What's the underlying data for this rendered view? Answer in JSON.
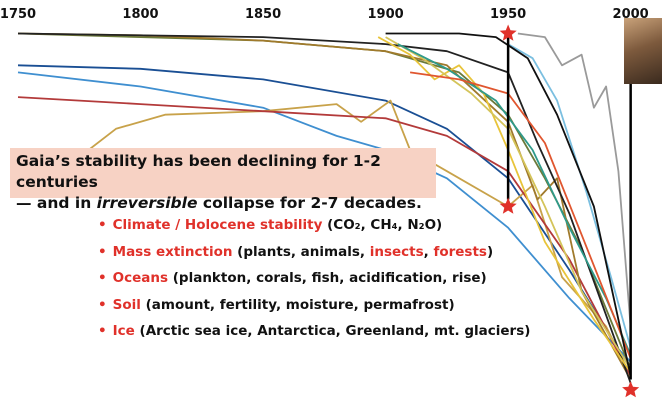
{
  "chart_data": {
    "type": "line",
    "title": "",
    "xlabel": "",
    "ylabel": "",
    "xlim": [
      1750,
      2003
    ],
    "ylim": [
      0,
      100
    ],
    "x_ticks": [
      1750,
      1800,
      1850,
      1900,
      1950,
      2000
    ],
    "grid": "none",
    "series": [
      {
        "color": "#3f8fd0",
        "points": [
          [
            1750,
            88
          ],
          [
            1800,
            84
          ],
          [
            1850,
            78
          ],
          [
            1880,
            70
          ],
          [
            1900,
            66
          ],
          [
            1925,
            58
          ],
          [
            1950,
            44
          ],
          [
            1975,
            24
          ],
          [
            2000,
            6
          ]
        ]
      },
      {
        "color": "#1a4f94",
        "points": [
          [
            1750,
            90
          ],
          [
            1800,
            89
          ],
          [
            1850,
            86
          ],
          [
            1900,
            80
          ],
          [
            1925,
            72
          ],
          [
            1950,
            58
          ],
          [
            1975,
            32
          ],
          [
            2000,
            4
          ]
        ]
      },
      {
        "color": "#6b7a3a",
        "points": [
          [
            1750,
            99
          ],
          [
            1800,
            98
          ],
          [
            1850,
            97
          ],
          [
            1900,
            94
          ],
          [
            1930,
            88
          ],
          [
            1950,
            76
          ],
          [
            1965,
            58
          ],
          [
            1980,
            38
          ],
          [
            2000,
            4
          ]
        ]
      },
      {
        "color": "#c8a24a",
        "points": [
          [
            1750,
            64
          ],
          [
            1762,
            58
          ],
          [
            1775,
            64
          ],
          [
            1790,
            72
          ],
          [
            1810,
            76
          ],
          [
            1850,
            77
          ],
          [
            1880,
            79
          ],
          [
            1890,
            74
          ],
          [
            1902,
            80
          ],
          [
            1910,
            66
          ],
          [
            1925,
            60
          ],
          [
            1950,
            50
          ],
          [
            1960,
            56
          ],
          [
            1972,
            30
          ],
          [
            1990,
            16
          ],
          [
            2000,
            2
          ]
        ]
      },
      {
        "color": "#b33a3a",
        "points": [
          [
            1750,
            81
          ],
          [
            1800,
            79
          ],
          [
            1850,
            77
          ],
          [
            1900,
            75
          ],
          [
            1925,
            70
          ],
          [
            1950,
            60
          ],
          [
            1975,
            35
          ],
          [
            2000,
            2
          ]
        ]
      },
      {
        "color": "#a07a2c",
        "points": [
          [
            1750,
            99
          ],
          [
            1800,
            98.5
          ],
          [
            1850,
            97
          ],
          [
            1900,
            94
          ],
          [
            1925,
            90
          ],
          [
            1950,
            74
          ],
          [
            1962,
            52
          ],
          [
            1970,
            58
          ],
          [
            1980,
            26
          ],
          [
            2000,
            1
          ]
        ]
      },
      {
        "color": "#222222",
        "points": [
          [
            1750,
            99
          ],
          [
            1850,
            98
          ],
          [
            1900,
            96
          ],
          [
            1925,
            94
          ],
          [
            1950,
            88
          ],
          [
            1962,
            68
          ],
          [
            1975,
            48
          ],
          [
            2000,
            0
          ]
        ]
      },
      {
        "color": "#e8c43a",
        "points": [
          [
            1897,
            98
          ],
          [
            1910,
            93
          ],
          [
            1920,
            86
          ],
          [
            1930,
            90
          ],
          [
            1940,
            82
          ],
          [
            1950,
            66
          ],
          [
            1965,
            40
          ],
          [
            1985,
            18
          ],
          [
            2000,
            3
          ]
        ]
      },
      {
        "color": "#d4c45a",
        "points": [
          [
            1900,
            98
          ],
          [
            1915,
            92
          ],
          [
            1935,
            82
          ],
          [
            1950,
            72
          ],
          [
            1965,
            50
          ],
          [
            1980,
            26
          ],
          [
            2000,
            4
          ]
        ]
      },
      {
        "color": "#2f9a8a",
        "points": [
          [
            1905,
            96
          ],
          [
            1925,
            89
          ],
          [
            1945,
            80
          ],
          [
            1960,
            66
          ],
          [
            1975,
            44
          ],
          [
            1990,
            24
          ],
          [
            2000,
            8
          ]
        ]
      },
      {
        "color": "#e0562f",
        "points": [
          [
            1910,
            88
          ],
          [
            1930,
            86
          ],
          [
            1950,
            82
          ],
          [
            1965,
            68
          ],
          [
            1980,
            42
          ],
          [
            2000,
            7
          ]
        ]
      },
      {
        "color": "#7bbfe0",
        "points": [
          [
            1950,
            96
          ],
          [
            1960,
            92
          ],
          [
            1970,
            80
          ],
          [
            1982,
            54
          ],
          [
            1992,
            30
          ],
          [
            2000,
            10
          ]
        ]
      },
      {
        "color": "#9a9a9a",
        "points": [
          [
            1954,
            99
          ],
          [
            1965,
            98
          ],
          [
            1972,
            90
          ],
          [
            1980,
            93
          ],
          [
            1985,
            78
          ],
          [
            1990,
            84
          ],
          [
            1995,
            60
          ],
          [
            2000,
            16
          ]
        ]
      },
      {
        "color": "#101010",
        "points": [
          [
            1900,
            99
          ],
          [
            1930,
            99
          ],
          [
            1945,
            98
          ],
          [
            1958,
            92
          ],
          [
            1970,
            76
          ],
          [
            1985,
            50
          ],
          [
            2000,
            2
          ]
        ]
      }
    ],
    "markers": [
      {
        "type": "vertical-line",
        "x": 1950,
        "y_top": 99,
        "y_bottom": 52
      },
      {
        "type": "star",
        "x": 1950,
        "y": 99
      },
      {
        "type": "star",
        "x": 1950,
        "y": 50
      },
      {
        "type": "vertical-line",
        "x": 2000,
        "y_top": 100,
        "y_bottom": 1
      },
      {
        "type": "star",
        "x": 2000,
        "y": -2
      }
    ]
  },
  "headline": {
    "line1": "Gaia’s stability has been declining for 1-2 centuries",
    "line2_a": "— and in ",
    "line2_em": "irreversible",
    "line2_b": " collapse for 2-7 decades."
  },
  "bullets": [
    {
      "red": "Climate / Holocene stability",
      "rest": " (CO₂, CH₄, N₂O)"
    },
    {
      "red": "Mass extinction",
      "rest": " (plants, animals, ",
      "red2": "insects",
      "mid": ", ",
      "red3": "forests",
      "end": ")"
    },
    {
      "red": "Oceans",
      "rest": " (plankton, corals, fish, acidification, rise)"
    },
    {
      "red": "Soil",
      "rest": " (amount, fertility, moisture, permafrost)"
    },
    {
      "red": "Ice",
      "rest": " (Arctic sea ice, Antarctica, Greenland, mt. glaciers)"
    }
  ],
  "bullet_glyph": "•",
  "colors": {
    "accent_red": "#e0312a",
    "headline_bg": "#f7d2c4"
  }
}
